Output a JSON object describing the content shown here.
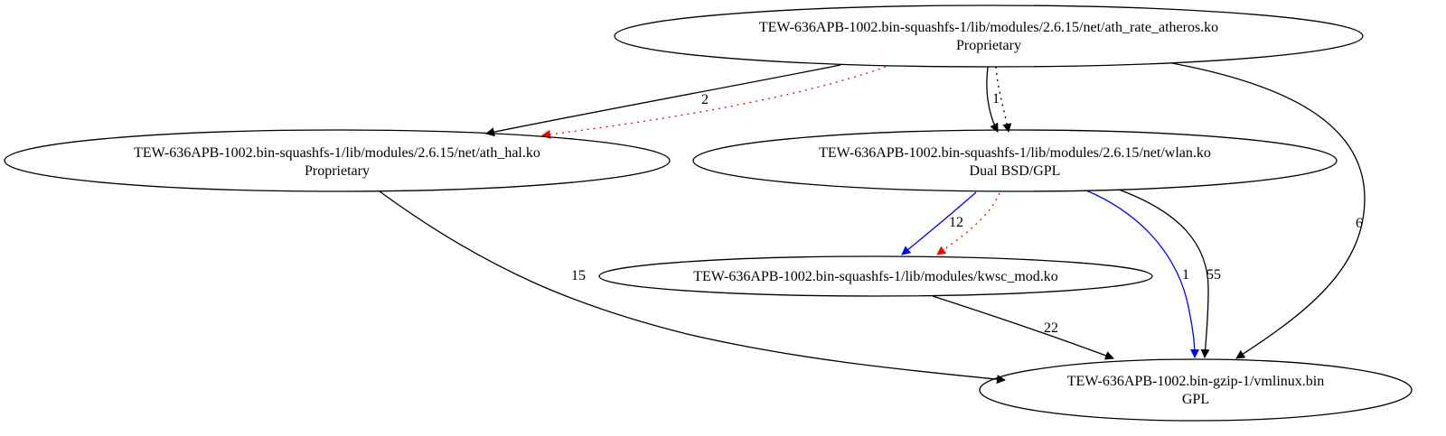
{
  "nodes": {
    "ath_rate": {
      "title": "TEW-636APB-1002.bin-squashfs-1/lib/modules/2.6.15/net/ath_rate_atheros.ko",
      "license": "Proprietary"
    },
    "ath_hal": {
      "title": "TEW-636APB-1002.bin-squashfs-1/lib/modules/2.6.15/net/ath_hal.ko",
      "license": "Proprietary"
    },
    "wlan": {
      "title": "TEW-636APB-1002.bin-squashfs-1/lib/modules/2.6.15/net/wlan.ko",
      "license": "Dual BSD/GPL"
    },
    "kwsc": {
      "title": "TEW-636APB-1002.bin-squashfs-1/lib/modules/kwsc_mod.ko",
      "license": ""
    },
    "vmlinux": {
      "title": "TEW-636APB-1002.bin-gzip-1/vmlinux.bin",
      "license": "GPL"
    }
  },
  "edges": [
    {
      "from": "ath_rate",
      "to": "ath_hal",
      "label": "2",
      "color": "#000000",
      "style": "solid"
    },
    {
      "from": "ath_rate",
      "to": "ath_hal",
      "label": "",
      "color": "#ff0000",
      "style": "dotted"
    },
    {
      "from": "ath_rate",
      "to": "wlan",
      "label": "1",
      "color": "#000000",
      "style": "solid"
    },
    {
      "from": "ath_rate",
      "to": "wlan",
      "label": "",
      "color": "#000000",
      "style": "dotted"
    },
    {
      "from": "ath_rate",
      "to": "vmlinux",
      "label": "6",
      "color": "#000000",
      "style": "solid"
    },
    {
      "from": "ath_hal",
      "to": "vmlinux",
      "label": "15",
      "color": "#000000",
      "style": "solid"
    },
    {
      "from": "wlan",
      "to": "kwsc",
      "label": "12",
      "color": "#0000ff",
      "style": "solid"
    },
    {
      "from": "wlan",
      "to": "kwsc",
      "label": "",
      "color": "#ff0000",
      "style": "dotted"
    },
    {
      "from": "wlan",
      "to": "vmlinux",
      "label": "1",
      "color": "#0000ff",
      "style": "solid"
    },
    {
      "from": "wlan",
      "to": "vmlinux",
      "label": "55",
      "color": "#000000",
      "style": "solid"
    },
    {
      "from": "kwsc",
      "to": "vmlinux",
      "label": "22",
      "color": "#000000",
      "style": "solid"
    }
  ]
}
